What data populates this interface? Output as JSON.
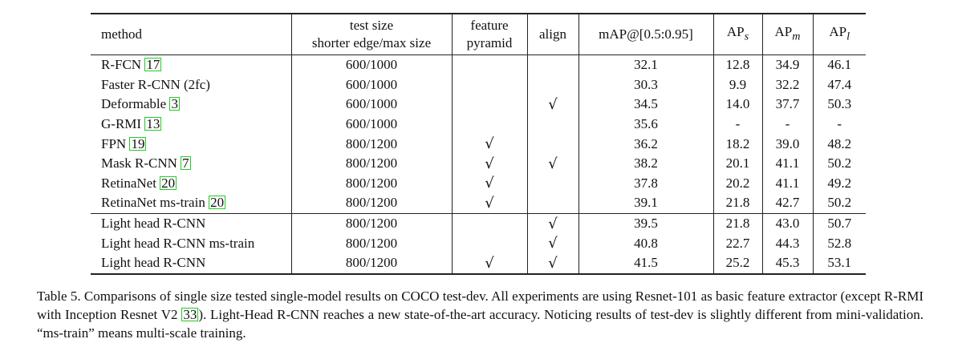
{
  "table": {
    "headers": {
      "method": "method",
      "test_size_1": "test size",
      "test_size_2": "shorter edge/max size",
      "feature_1": "feature",
      "feature_2": "pyramid",
      "align": "align",
      "map": "mAP@[0.5:0.95]",
      "aps_base": "AP",
      "aps_sub": "s",
      "apm_base": "AP",
      "apm_sub": "m",
      "apl_base": "AP",
      "apl_sub": "l"
    },
    "check_mark": "√",
    "rows": [
      {
        "name": "R-FCN",
        "cite": "17",
        "size": "600/1000",
        "fp": "",
        "align": "",
        "map": "32.1",
        "aps": "12.8",
        "apm": "34.9",
        "apl": "46.1"
      },
      {
        "name": "Faster R-CNN (2fc)",
        "cite": "",
        "size": "600/1000",
        "fp": "",
        "align": "",
        "map": "30.3",
        "aps": "9.9",
        "apm": "32.2",
        "apl": "47.4"
      },
      {
        "name": "Deformable",
        "cite": "3",
        "size": "600/1000",
        "fp": "",
        "align": "√",
        "map": "34.5",
        "aps": "14.0",
        "apm": "37.7",
        "apl": "50.3"
      },
      {
        "name": "G-RMI",
        "cite": "13",
        "size": "600/1000",
        "fp": "",
        "align": "",
        "map": "35.6",
        "aps": "-",
        "apm": "-",
        "apl": "-"
      },
      {
        "name": "FPN",
        "cite": "19",
        "size": "800/1200",
        "fp": "√",
        "align": "",
        "map": "36.2",
        "aps": "18.2",
        "apm": "39.0",
        "apl": "48.2"
      },
      {
        "name": "Mask R-CNN",
        "cite": "7",
        "size": "800/1200",
        "fp": "√",
        "align": "√",
        "map": "38.2",
        "aps": "20.1",
        "apm": "41.1",
        "apl": "50.2"
      },
      {
        "name": "RetinaNet",
        "cite": "20",
        "size": "800/1200",
        "fp": "√",
        "align": "",
        "map": "37.8",
        "aps": "20.2",
        "apm": "41.1",
        "apl": "49.2"
      },
      {
        "name": "RetinaNet ms-train",
        "cite": "20",
        "size": "800/1200",
        "fp": "√",
        "align": "",
        "map": "39.1",
        "aps": "21.8",
        "apm": "42.7",
        "apl": "50.2"
      }
    ],
    "rows2": [
      {
        "name": "Light head R-CNN",
        "size": "800/1200",
        "fp": "",
        "align": "√",
        "map": "39.5",
        "aps": "21.8",
        "apm": "43.0",
        "apl": "50.7"
      },
      {
        "name": "Light head R-CNN ms-train",
        "size": "800/1200",
        "fp": "",
        "align": "√",
        "map": "40.8",
        "aps": "22.7",
        "apm": "44.3",
        "apl": "52.8"
      },
      {
        "name": "Light head R-CNN",
        "size": "800/1200",
        "fp": "√",
        "align": "√",
        "map": "41.5",
        "aps": "25.2",
        "apm": "45.3",
        "apl": "53.1"
      }
    ]
  },
  "caption": {
    "part1": "Table 5. Comparisons of single size tested single-model results on COCO test-dev. All experiments are using Resnet-101 as basic feature extractor (except R-RMI with Inception Resnet V2 ",
    "cite": "33",
    "part2": "). Light-Head R-CNN reaches a new state-of-the-art accuracy. Noticing results of test-dev is slightly different from mini-validation. “ms-train” means multi-scale training."
  }
}
